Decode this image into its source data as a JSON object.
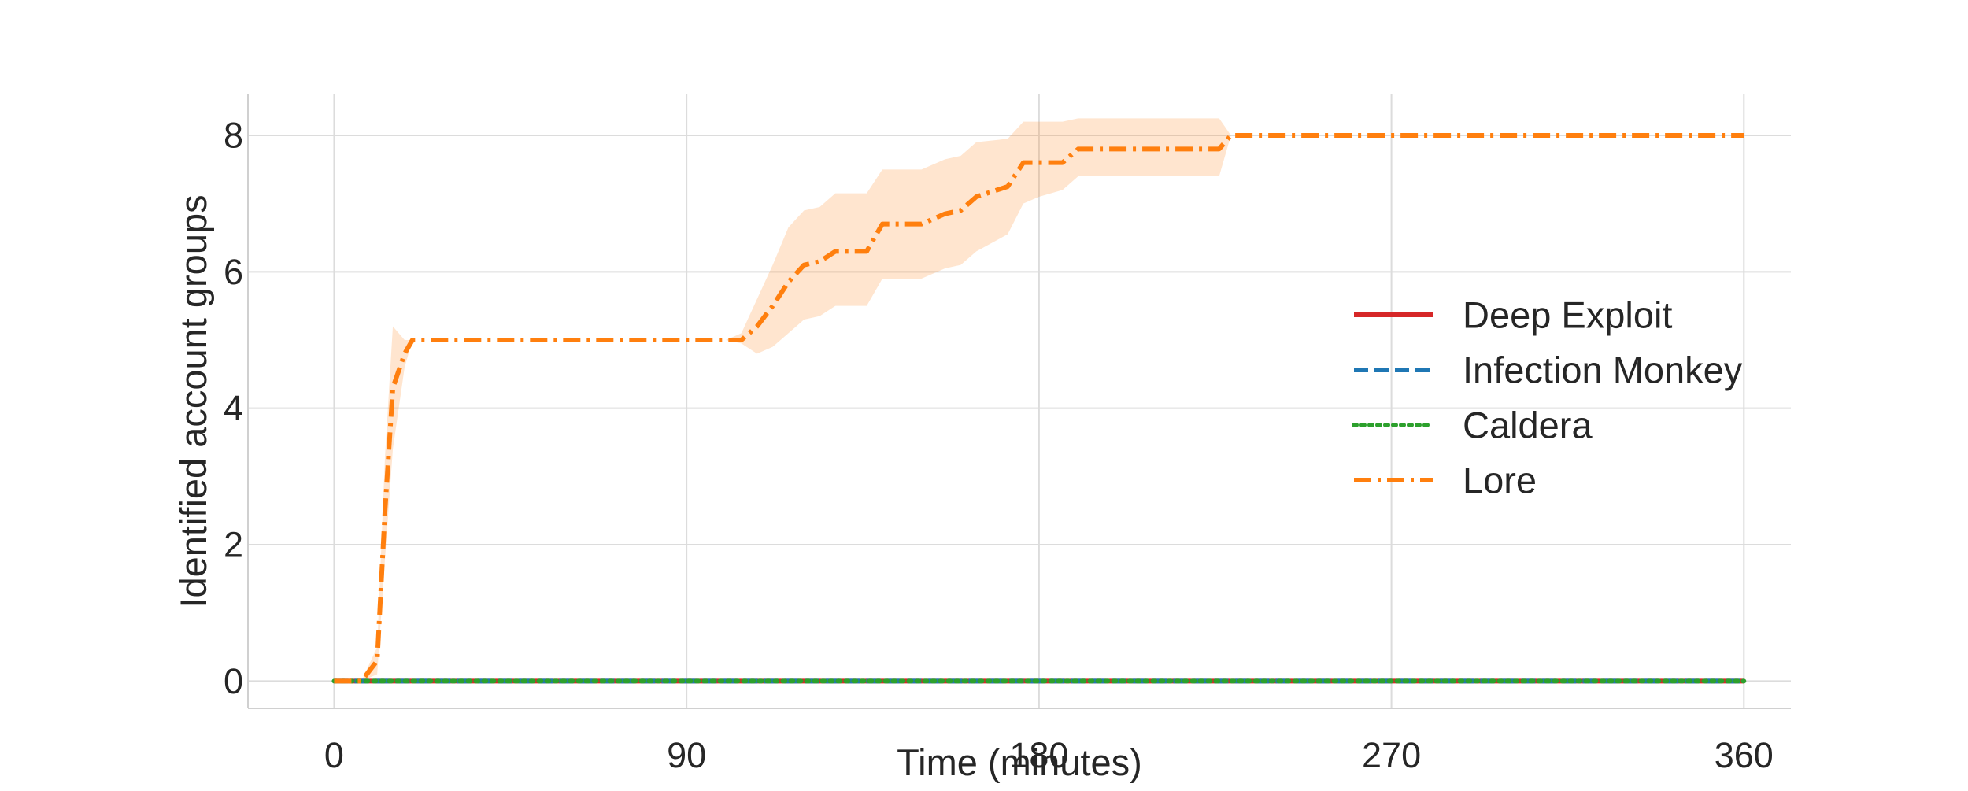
{
  "chart_data": {
    "type": "line",
    "title": "",
    "xlabel": "Time (minutes)",
    "ylabel": "Identified account groups",
    "xlim": [
      -22,
      372
    ],
    "ylim": [
      -0.4,
      8.6
    ],
    "xticks": [
      0,
      90,
      180,
      270,
      360
    ],
    "yticks": [
      0,
      2,
      4,
      6,
      8
    ],
    "grid": true,
    "legend_position": "center-right",
    "series": [
      {
        "name": "Deep Exploit",
        "color": "#d62728",
        "linestyle": "solid",
        "x": [
          0,
          360
        ],
        "y": [
          0,
          0
        ]
      },
      {
        "name": "Infection Monkey",
        "color": "#1f77b4",
        "linestyle": "dashed",
        "x": [
          0,
          360
        ],
        "y": [
          0,
          0
        ]
      },
      {
        "name": "Caldera",
        "color": "#2ca02c",
        "linestyle": "dotted",
        "x": [
          0,
          360
        ],
        "y": [
          0,
          0
        ]
      },
      {
        "name": "Lore",
        "color": "#ff7f0e",
        "linestyle": "dashdot",
        "x": [
          0,
          7,
          11,
          13,
          15,
          18,
          20,
          60,
          100,
          104,
          108,
          112,
          116,
          120,
          124,
          128,
          136,
          140,
          150,
          156,
          160,
          164,
          172,
          176,
          180,
          186,
          190,
          200,
          210,
          226,
          229,
          360
        ],
        "y": [
          0,
          0,
          0.3,
          2.5,
          4.3,
          4.8,
          5,
          5,
          5,
          5,
          5.2,
          5.5,
          5.85,
          6.1,
          6.15,
          6.3,
          6.3,
          6.7,
          6.7,
          6.85,
          6.9,
          7.1,
          7.25,
          7.6,
          7.6,
          7.6,
          7.8,
          7.8,
          7.8,
          7.8,
          8,
          8
        ],
        "band_lower": [
          0,
          0,
          0.1,
          1.8,
          3.4,
          4.6,
          5,
          5,
          5,
          4.95,
          4.8,
          4.9,
          5.1,
          5.3,
          5.35,
          5.5,
          5.5,
          5.9,
          5.9,
          6.05,
          6.1,
          6.3,
          6.55,
          7.0,
          7.1,
          7.2,
          7.4,
          7.4,
          7.4,
          7.4,
          8,
          8
        ],
        "band_upper": [
          0,
          0,
          0.5,
          3.3,
          5.2,
          5.0,
          5,
          5,
          5,
          5.1,
          5.6,
          6.1,
          6.65,
          6.9,
          6.95,
          7.15,
          7.15,
          7.5,
          7.5,
          7.65,
          7.7,
          7.9,
          7.95,
          8.2,
          8.2,
          8.2,
          8.25,
          8.25,
          8.25,
          8.25,
          8,
          8
        ]
      }
    ]
  }
}
